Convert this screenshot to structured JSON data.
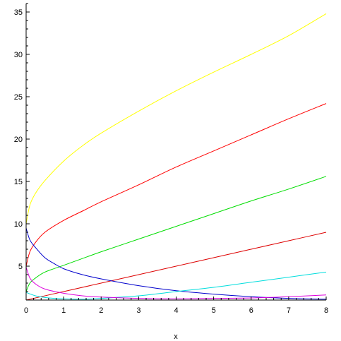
{
  "chart_data": {
    "type": "line",
    "title": "",
    "xlabel": "x",
    "ylabel": "",
    "xlim": [
      0,
      8
    ],
    "ylim": [
      1,
      36
    ],
    "x_ticks": [
      0,
      1,
      2,
      3,
      4,
      5,
      6,
      7,
      8
    ],
    "y_ticks": [
      5,
      10,
      15,
      20,
      25,
      30,
      35
    ],
    "grid": false,
    "legend": "none",
    "series": [
      {
        "color": "#ffff00",
        "points": [
          [
            0,
            10.0
          ],
          [
            0.1,
            12.2
          ],
          [
            0.25,
            13.6
          ],
          [
            0.5,
            15.1
          ],
          [
            1,
            17.4
          ],
          [
            1.5,
            19.2
          ],
          [
            2,
            20.7
          ],
          [
            3,
            23.3
          ],
          [
            4,
            25.7
          ],
          [
            5,
            27.9
          ],
          [
            6,
            30.0
          ],
          [
            7,
            32.2
          ],
          [
            8,
            34.8
          ]
        ]
      },
      {
        "color": "#ff0000",
        "points": [
          [
            0,
            5.0
          ],
          [
            0.1,
            6.7
          ],
          [
            0.25,
            7.8
          ],
          [
            0.5,
            9.0
          ],
          [
            1,
            10.4
          ],
          [
            1.5,
            11.5
          ],
          [
            2,
            12.6
          ],
          [
            3,
            14.6
          ],
          [
            4,
            16.7
          ],
          [
            5,
            18.6
          ],
          [
            6,
            20.5
          ],
          [
            7,
            22.4
          ],
          [
            8,
            24.2
          ]
        ]
      },
      {
        "color": "#00dd00",
        "points": [
          [
            0,
            2.0
          ],
          [
            0.1,
            3.0
          ],
          [
            0.25,
            3.6
          ],
          [
            0.5,
            4.3
          ],
          [
            1,
            5.1
          ],
          [
            1.5,
            5.9
          ],
          [
            2,
            6.7
          ],
          [
            3,
            8.2
          ],
          [
            4,
            9.7
          ],
          [
            5,
            11.2
          ],
          [
            6,
            12.7
          ],
          [
            7,
            14.1
          ],
          [
            8,
            15.6
          ]
        ]
      },
      {
        "color": "#dd0000",
        "points": [
          [
            0,
            1.0
          ],
          [
            1,
            2.0
          ],
          [
            2,
            3.0
          ],
          [
            3,
            4.0
          ],
          [
            4,
            5.0
          ],
          [
            5,
            6.0
          ],
          [
            6,
            7.0
          ],
          [
            7,
            8.0
          ],
          [
            8,
            9.0
          ]
        ]
      },
      {
        "color": "#0000cc",
        "points": [
          [
            0,
            9.5
          ],
          [
            0.1,
            8.1
          ],
          [
            0.25,
            7.2
          ],
          [
            0.5,
            6.0
          ],
          [
            0.75,
            5.3
          ],
          [
            1,
            4.7
          ],
          [
            1.5,
            4.0
          ],
          [
            2,
            3.5
          ],
          [
            3,
            2.7
          ],
          [
            4,
            2.1
          ],
          [
            5,
            1.7
          ],
          [
            6,
            1.4
          ],
          [
            7,
            1.2
          ],
          [
            8,
            1.1
          ]
        ]
      },
      {
        "color": "#00dddd",
        "points": [
          [
            0,
            1.9
          ],
          [
            0.25,
            1.5
          ],
          [
            0.5,
            1.3
          ],
          [
            0.75,
            1.2
          ],
          [
            1,
            1.15
          ],
          [
            1.5,
            1.1
          ],
          [
            2,
            1.2
          ],
          [
            3,
            1.5
          ],
          [
            4,
            2.0
          ],
          [
            5,
            2.5
          ],
          [
            6,
            3.1
          ],
          [
            7,
            3.7
          ],
          [
            8,
            4.3
          ]
        ]
      },
      {
        "color": "#dd00dd",
        "points": [
          [
            0,
            4.9
          ],
          [
            0.1,
            3.6
          ],
          [
            0.25,
            2.9
          ],
          [
            0.5,
            2.3
          ],
          [
            1,
            1.8
          ],
          [
            1.5,
            1.5
          ],
          [
            2,
            1.35
          ],
          [
            3,
            1.2
          ],
          [
            4,
            1.15
          ],
          [
            5,
            1.2
          ],
          [
            6,
            1.25
          ],
          [
            7,
            1.4
          ],
          [
            8,
            1.6
          ]
        ]
      }
    ]
  }
}
